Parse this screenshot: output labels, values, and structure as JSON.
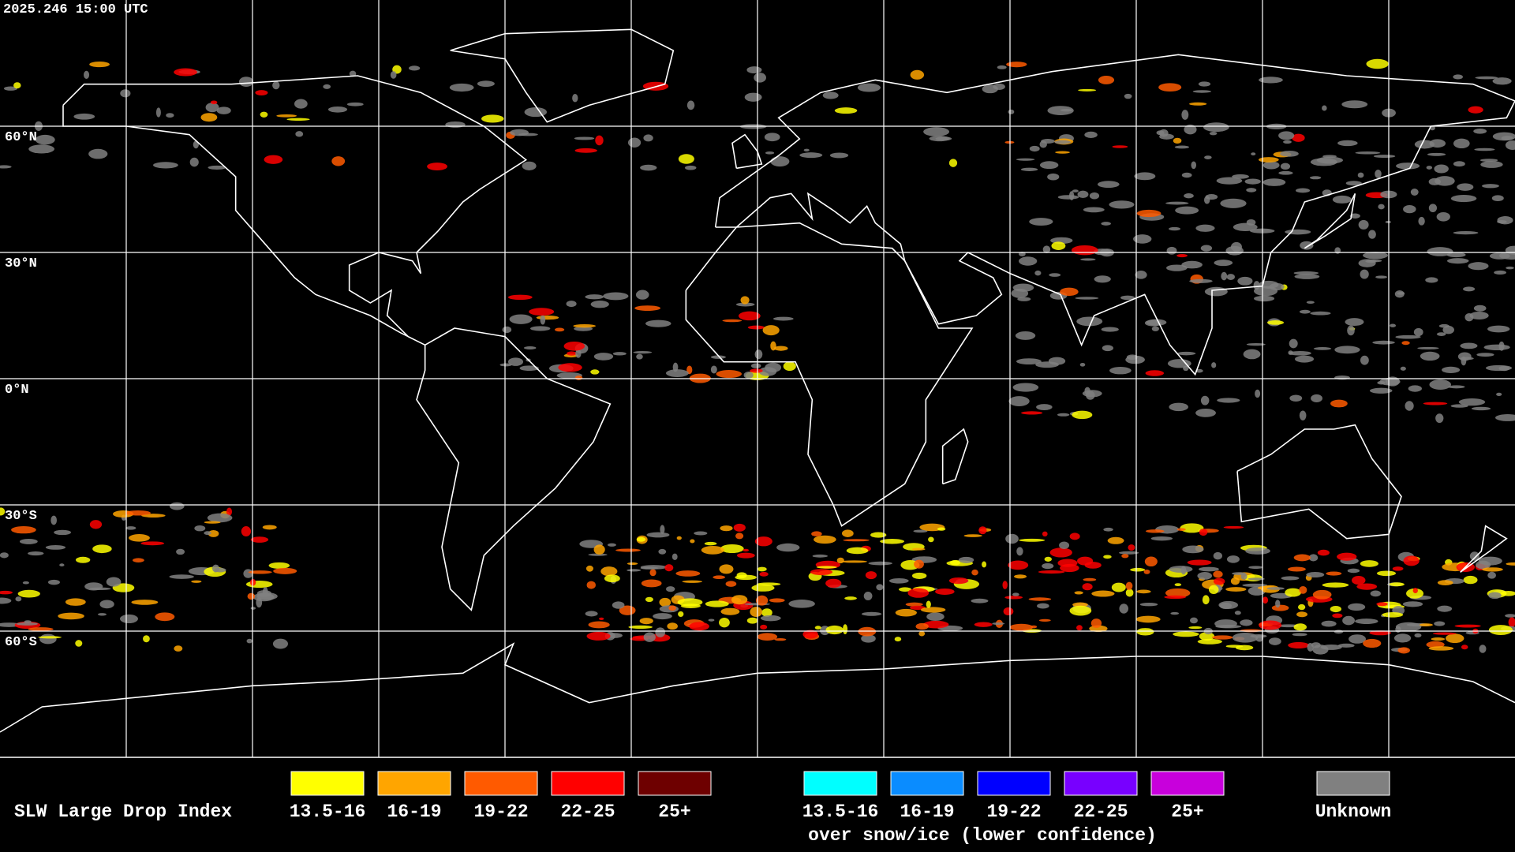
{
  "header": {
    "timestamp": "2025.246 15:00 UTC"
  },
  "map": {
    "lat_labels": [
      "60°N",
      "30°N",
      "0°N",
      "30°S",
      "60°S"
    ]
  },
  "legend": {
    "title": "SLW Large Drop Index",
    "items": [
      {
        "label": "13.5-16",
        "color": "#ffff00"
      },
      {
        "label": "16-19",
        "color": "#ffa500"
      },
      {
        "label": "19-22",
        "color": "#ff5a00"
      },
      {
        "label": "22-25",
        "color": "#ff0000"
      },
      {
        "label": "25+",
        "color": "#6e0000"
      }
    ],
    "snow_items": [
      {
        "label": "13.5-16",
        "color": "#00ffff"
      },
      {
        "label": "16-19",
        "color": "#0a8cff"
      },
      {
        "label": "19-22",
        "color": "#0000ff"
      },
      {
        "label": "22-25",
        "color": "#7800ff"
      },
      {
        "label": "25+",
        "color": "#c800dc"
      }
    ],
    "snow_caption": "over snow/ice (lower confidence)",
    "unknown": {
      "label": "Unknown",
      "color": "#808080"
    }
  }
}
